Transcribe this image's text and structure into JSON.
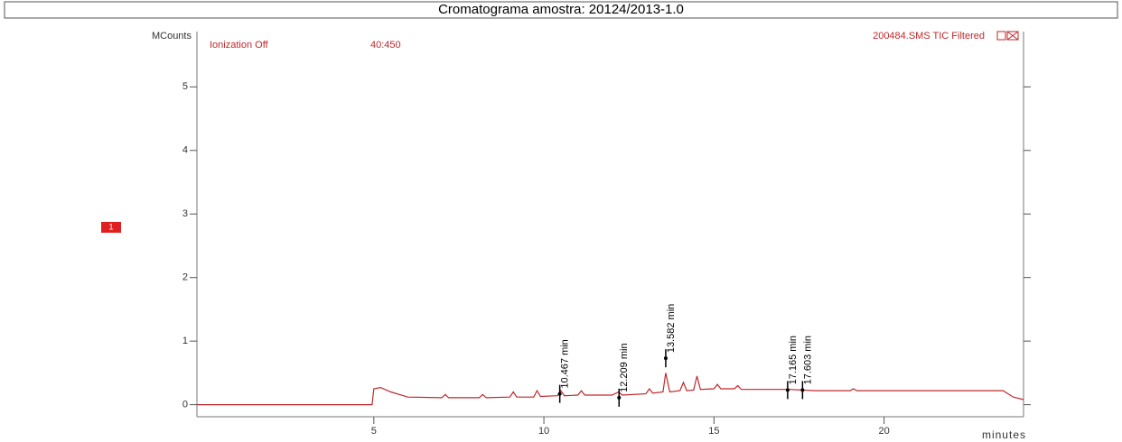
{
  "chart_data": {
    "type": "line",
    "title": "Cromatograma amostra: 20124/2013-1.0",
    "y_label": "MCounts",
    "x_label": "minutes",
    "annotations": [
      "Ionization Off",
      "40:450",
      "200484.SMS TIC Filtered"
    ],
    "trace_marker": "1",
    "xlim": [
      -0.2,
      24.1
    ],
    "ylim": [
      -0.19,
      5.87
    ],
    "xticks": [
      5,
      10,
      15,
      20
    ],
    "yticks": [
      0,
      1,
      2,
      3,
      4,
      5
    ],
    "grid": false,
    "x": [
      -0.2,
      4.95,
      5.0,
      5.2,
      5.5,
      6.0,
      7.0,
      7.1,
      7.2,
      8.1,
      8.2,
      8.3,
      9.0,
      9.1,
      9.2,
      9.7,
      9.8,
      9.9,
      10.4,
      10.5,
      10.6,
      11.0,
      11.1,
      11.2,
      12.0,
      12.2,
      12.3,
      13.0,
      13.1,
      13.2,
      13.5,
      13.58,
      13.7,
      14.0,
      14.1,
      14.2,
      14.4,
      14.5,
      14.6,
      15.0,
      15.1,
      15.2,
      15.6,
      15.7,
      15.8,
      16.5,
      17.2,
      18.0,
      19.0,
      19.1,
      19.2,
      23.5,
      23.8,
      24.1
    ],
    "series": [
      {
        "name": "200484.SMS TIC Filtered",
        "color": "#c0282a",
        "values": [
          0,
          0,
          0.25,
          0.27,
          0.2,
          0.12,
          0.11,
          0.16,
          0.11,
          0.11,
          0.16,
          0.11,
          0.12,
          0.2,
          0.12,
          0.12,
          0.22,
          0.13,
          0.14,
          0.22,
          0.14,
          0.15,
          0.22,
          0.15,
          0.15,
          0.2,
          0.15,
          0.17,
          0.25,
          0.18,
          0.2,
          0.5,
          0.2,
          0.22,
          0.35,
          0.22,
          0.23,
          0.45,
          0.24,
          0.25,
          0.32,
          0.25,
          0.25,
          0.3,
          0.24,
          0.24,
          0.24,
          0.22,
          0.22,
          0.25,
          0.22,
          0.22,
          0.12,
          0.08
        ]
      }
    ],
    "peaks": [
      {
        "label": "10.467 min",
        "x": 10.467,
        "y": 0.17
      },
      {
        "label": "12.209 min",
        "x": 12.209,
        "y": 0.11
      },
      {
        "label": "13.582 min",
        "x": 13.582,
        "y": 0.73
      },
      {
        "label": "17.165 min",
        "x": 17.165,
        "y": 0.23
      },
      {
        "label": "17.603 min",
        "x": 17.603,
        "y": 0.23
      }
    ]
  }
}
